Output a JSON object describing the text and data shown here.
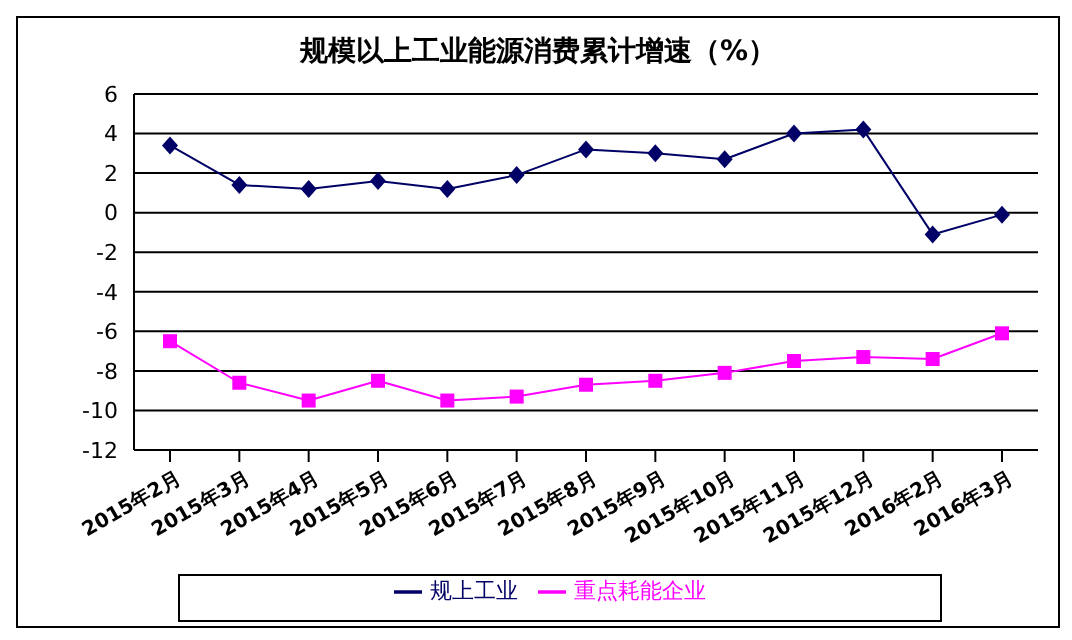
{
  "chart_data": {
    "type": "line",
    "title": "规模以上工业能源消费累计增速（%）",
    "categories": [
      "2015年2月",
      "2015年3月",
      "2015年4月",
      "2015年5月",
      "2015年6月",
      "2015年7月",
      "2015年8月",
      "2015年9月",
      "2015年10月",
      "2015年11月",
      "2015年12月",
      "2016年2月",
      "2016年3月"
    ],
    "series": [
      {
        "name": "规上工业",
        "color": "#000066",
        "marker": "diamond",
        "values": [
          3.4,
          1.4,
          1.2,
          1.6,
          1.2,
          1.9,
          3.2,
          3.0,
          2.7,
          4.0,
          4.2,
          -1.1,
          -0.1
        ]
      },
      {
        "name": "重点耗能企业",
        "color": "#ff00ff",
        "marker": "square",
        "values": [
          -6.5,
          -8.6,
          -9.5,
          -8.5,
          -9.5,
          -9.3,
          -8.7,
          -8.5,
          -8.1,
          -7.5,
          -7.3,
          -7.4,
          -6.1
        ]
      }
    ],
    "ylim": [
      -12,
      6
    ],
    "yticks": [
      -12,
      -10,
      -8,
      -6,
      -4,
      -2,
      0,
      2,
      4,
      6
    ],
    "grid": "y",
    "legend": "bottom"
  }
}
